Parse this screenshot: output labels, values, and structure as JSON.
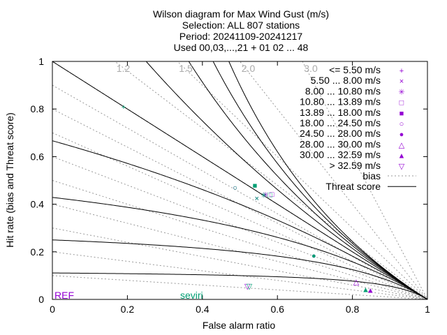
{
  "chart_data": {
    "type": "scatter",
    "title_lines": [
      "Wilson diagram  for Max Wind Gust (m/s)",
      "Selection: ALL    807 stations",
      "Period: 20241109-20241217",
      "Used 00,03,...,21 + 01 02 ... 48"
    ],
    "xlabel": "False alarm ratio",
    "ylabel": "Hit rate (bias and Threat score)",
    "xlim": [
      0,
      1
    ],
    "ylim": [
      0,
      1
    ],
    "x_ticks": [
      "0",
      "0.2",
      "0.4",
      "0.6",
      "0.8",
      "1"
    ],
    "y_ticks": [
      "0",
      "0.2",
      "0.4",
      "0.6",
      "0.8",
      "1"
    ],
    "bias_lines": [
      0.1,
      0.2,
      0.3,
      0.4,
      0.5,
      0.6,
      0.7,
      0.8,
      0.9,
      1.0,
      1.2,
      1.5,
      2.0,
      3.0
    ],
    "bias_labels": [
      "1.2",
      "1.5",
      "2.0",
      "3.0"
    ],
    "threat_score_lines": [
      0.1,
      0.2,
      0.3,
      0.4,
      0.5,
      0.6,
      0.7,
      0.8,
      0.9
    ],
    "legend_position": "top-right",
    "legend_lines": [
      {
        "label": "bias",
        "style": "dotted",
        "color": "#999999"
      },
      {
        "label": "Threat score",
        "style": "solid",
        "color": "#000000"
      }
    ],
    "series": [
      {
        "name": "<= 5.50 m/s",
        "marker": "plus",
        "symbol": "+",
        "color": "#9400d3",
        "points": [
          {
            "model": "seviri",
            "x": 0.19,
            "y": 0.81
          }
        ]
      },
      {
        "name": "5.50 ... 8.00 m/s",
        "marker": "cross",
        "symbol": "×",
        "color": "#9400d3",
        "points": [
          {
            "model": "REF",
            "x": 0.545,
            "y": 0.425
          },
          {
            "model": "seviri",
            "x": 0.545,
            "y": 0.425
          }
        ]
      },
      {
        "name": "8.00 ... 10.80 m/s",
        "marker": "star",
        "symbol": "✳",
        "color": "#9400d3",
        "points": [
          {
            "model": "REF",
            "x": 0.568,
            "y": 0.44
          },
          {
            "model": "seviri",
            "x": 0.564,
            "y": 0.438
          }
        ]
      },
      {
        "name": "10.80 ... 13.89 m/s",
        "marker": "square-open",
        "symbol": "□",
        "color": "#9400d3",
        "points": [
          {
            "model": "REF",
            "x": 0.585,
            "y": 0.443
          },
          {
            "model": "seviri",
            "x": 0.58,
            "y": 0.44
          }
        ]
      },
      {
        "name": "13.89 ... 18.00 m/s",
        "marker": "square-filled",
        "symbol": "■",
        "color": "#9400d3",
        "points": [
          {
            "model": "seviri",
            "x": 0.54,
            "y": 0.48
          }
        ]
      },
      {
        "name": "18.00 ... 24.50 m/s",
        "marker": "circle-open",
        "symbol": "○",
        "color": "#9400d3",
        "points": [
          {
            "model": "REF",
            "x": 0.487,
            "y": 0.47
          },
          {
            "model": "seviri",
            "x": 0.487,
            "y": 0.47
          }
        ]
      },
      {
        "name": "24.50 ... 28.00 m/s",
        "marker": "circle-filled",
        "symbol": "●",
        "color": "#9400d3",
        "points": [
          {
            "model": "REF",
            "x": 0.697,
            "y": 0.185
          },
          {
            "model": "seviri",
            "x": 0.697,
            "y": 0.185
          }
        ]
      },
      {
        "name": "28.00 ... 30.00 m/s",
        "marker": "triangle-open",
        "symbol": "△",
        "color": "#9400d3",
        "points": [
          {
            "model": "REF",
            "x": 0.81,
            "y": 0.075
          }
        ]
      },
      {
        "name": "30.00 ... 32.59 m/s",
        "marker": "triangle-filled",
        "symbol": "▲",
        "color": "#9400d3",
        "points": [
          {
            "model": "REF",
            "x": 0.848,
            "y": 0.04
          },
          {
            "model": "seviri",
            "x": 0.835,
            "y": 0.043
          }
        ]
      },
      {
        "name": "> 32.59 m/s",
        "marker": "triangle-down-open",
        "symbol": "▽",
        "color": "#9400d3",
        "points": [
          {
            "model": "REF",
            "x": 0.52,
            "y": 0.055
          },
          {
            "model": "seviri",
            "x": 0.525,
            "y": 0.055
          }
        ]
      }
    ],
    "models": [
      {
        "name": "REF",
        "color": "#9400d3"
      },
      {
        "name": "seviri",
        "color": "#009e73"
      }
    ]
  }
}
